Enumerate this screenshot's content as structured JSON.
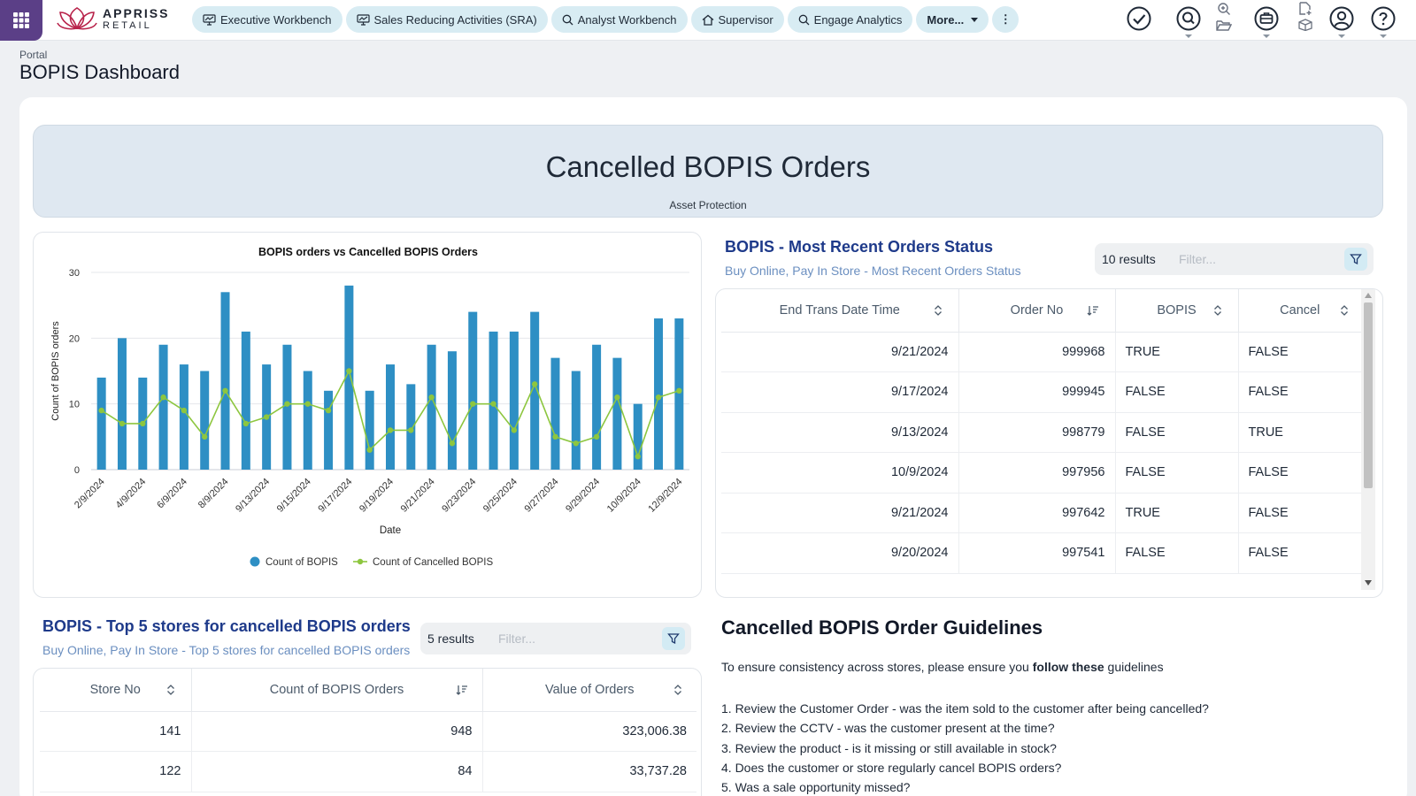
{
  "nav": {
    "brand": [
      "APPRISS",
      "RETAIL"
    ],
    "items": [
      {
        "label": "Executive Workbench",
        "icon": "chart-board-icon"
      },
      {
        "label": "Sales Reducing Activities (SRA)",
        "icon": "chart-board-icon"
      },
      {
        "label": "Analyst Workbench",
        "icon": "magnify-icon"
      },
      {
        "label": "Supervisor",
        "icon": "home-icon"
      },
      {
        "label": "Engage Analytics",
        "icon": "magnify-icon"
      }
    ],
    "more_label": "More...",
    "kebab": "⋮"
  },
  "header": {
    "breadcrumb": "Portal",
    "title": "BOPIS Dashboard"
  },
  "banner": {
    "title": "Cancelled BOPIS Orders",
    "subtitle": "Asset Protection"
  },
  "chart_data": {
    "type": "bar+line",
    "title": "BOPIS orders vs Cancelled BOPIS Orders",
    "xlabel": "Date",
    "ylabel": "Count of BOPIS orders",
    "ylim": [
      0,
      30
    ],
    "yticks": [
      0,
      10,
      20,
      30
    ],
    "grid": true,
    "legend_position": "bottom",
    "tick_labels": [
      "2/9/2024",
      "4/9/2024",
      "6/9/2024",
      "8/9/2024",
      "9/13/2024",
      "9/15/2024",
      "9/17/2024",
      "9/19/2024",
      "9/21/2024",
      "9/23/2024",
      "9/25/2024",
      "9/27/2024",
      "9/29/2024",
      "10/9/2024",
      "12/9/2024"
    ],
    "series": [
      {
        "name": "Count of BOPIS",
        "type": "bar",
        "color": "#2e8fc4",
        "values": [
          14,
          20,
          14,
          19,
          16,
          15,
          27,
          21,
          16,
          19,
          15,
          12,
          28,
          12,
          16,
          13,
          19,
          18,
          24,
          21,
          21,
          24,
          17,
          15,
          19,
          17,
          10,
          23,
          23
        ]
      },
      {
        "name": "Count of Cancelled BOPIS",
        "type": "line",
        "color": "#8dc63f",
        "values": [
          9,
          7,
          7,
          11,
          9,
          5,
          12,
          7,
          8,
          10,
          10,
          9,
          15,
          3,
          6,
          6,
          11,
          4,
          10,
          10,
          6,
          13,
          5,
          4,
          5,
          11,
          2,
          11,
          12
        ]
      }
    ]
  },
  "recent_orders": {
    "title": "BOPIS - Most Recent Orders Status",
    "subtitle": "Buy Online, Pay In Store - Most Recent Orders Status",
    "result_count": "10 results",
    "filter_placeholder": "Filter...",
    "columns": [
      "End Trans Date Time",
      "Order No",
      "BOPIS",
      "Cancel"
    ],
    "rows": [
      [
        "9/21/2024",
        "999968",
        "TRUE",
        "FALSE"
      ],
      [
        "9/17/2024",
        "999945",
        "FALSE",
        "FALSE"
      ],
      [
        "9/13/2024",
        "998779",
        "FALSE",
        "TRUE"
      ],
      [
        "10/9/2024",
        "997956",
        "FALSE",
        "FALSE"
      ],
      [
        "9/21/2024",
        "997642",
        "TRUE",
        "FALSE"
      ],
      [
        "9/20/2024",
        "997541",
        "FALSE",
        "FALSE"
      ]
    ]
  },
  "top_stores": {
    "title": "BOPIS - Top 5 stores for cancelled BOPIS orders",
    "subtitle": "Buy Online, Pay In Store - Top 5 stores for cancelled BOPIS orders",
    "result_count": "5 results",
    "filter_placeholder": "Filter...",
    "columns": [
      "Store No",
      "Count of BOPIS Orders",
      "Value of Orders"
    ],
    "rows": [
      [
        "141",
        "948",
        "323,006.38"
      ],
      [
        "122",
        "84",
        "33,737.28"
      ]
    ]
  },
  "guidelines": {
    "title": "Cancelled BOPIS Order Guidelines",
    "intro_before": "To ensure consistency across stores, please ensure you ",
    "intro_bold": "follow these",
    "intro_after": " guidelines",
    "items": [
      "1. Review the Customer Order - was the item sold to the customer after being cancelled?",
      "2. Review the CCTV - was the customer present at the time?",
      "3. Review the product - is it missing or still available in stock?",
      "4. Does the customer or store regularly cancel BOPIS orders?",
      "5. Was a sale opportunity missed?"
    ]
  },
  "colors": {
    "accent": "#5b3f87",
    "pill": "#d8ecf3",
    "bar": "#2e8fc4",
    "line": "#8dc63f",
    "section_title": "#1e3a8a"
  }
}
